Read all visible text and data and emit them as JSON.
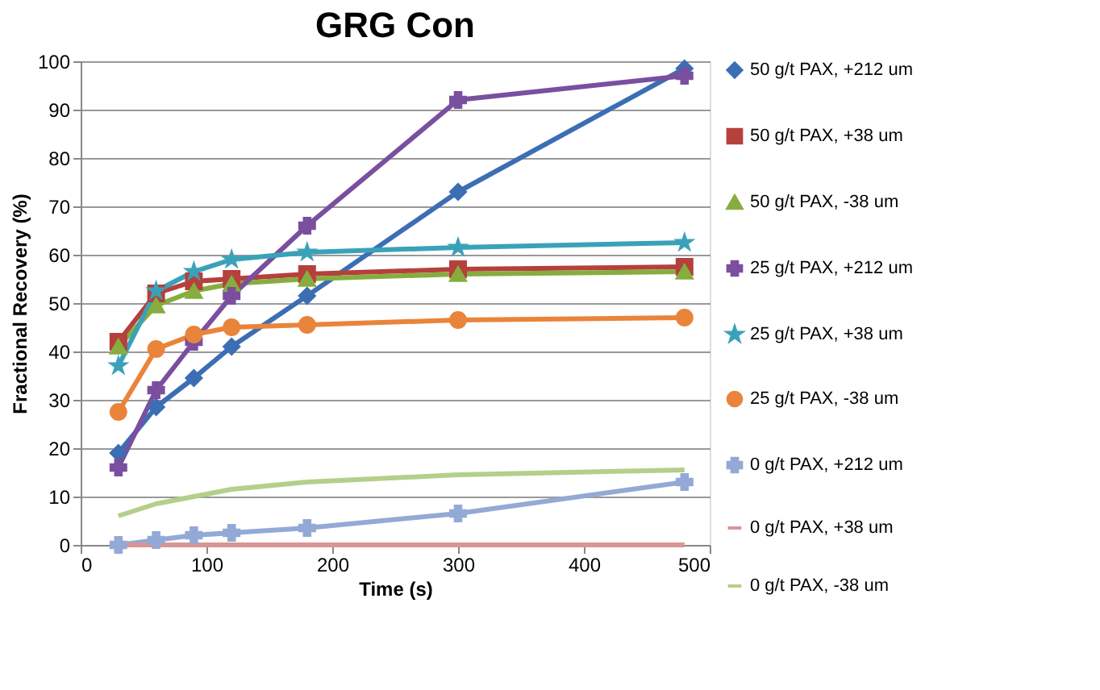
{
  "chart_data": {
    "type": "line",
    "title": "GRG Con",
    "xlabel": "Time (s)",
    "ylabel": "Fractional Recovery (%)",
    "x": [
      30,
      60,
      90,
      120,
      180,
      300,
      480
    ],
    "xlim": [
      0,
      500
    ],
    "xticks": [
      0,
      100,
      200,
      300,
      400,
      500
    ],
    "ylim": [
      0,
      100
    ],
    "yticks": [
      0,
      10,
      20,
      30,
      40,
      50,
      60,
      70,
      80,
      90,
      100
    ],
    "grid": "y",
    "legend": "right",
    "line_style": "solid",
    "series": [
      {
        "name": "50 g/t PAX, +212 um",
        "color": "#3c6eb4",
        "marker": "diamond",
        "values": [
          19,
          28.5,
          34.5,
          41,
          51.5,
          73,
          98.5
        ]
      },
      {
        "name": "50 g/t PAX, +38 um",
        "color": "#b5403c",
        "marker": "square",
        "values": [
          42,
          52,
          54.5,
          55,
          56,
          57,
          57.5
        ]
      },
      {
        "name": "50 g/t PAX, -38 um",
        "color": "#86ad3e",
        "marker": "triangle",
        "values": [
          41,
          49.5,
          52.5,
          54,
          55,
          56,
          56.5
        ]
      },
      {
        "name": "25 g/t PAX, +212 um",
        "color": "#7a4f9f",
        "marker": "cross",
        "values": [
          16,
          32,
          42,
          51.5,
          66,
          92,
          97
        ]
      },
      {
        "name": "25 g/t PAX, +38 um",
        "color": "#3aa2b8",
        "marker": "star",
        "values": [
          37,
          52.5,
          56.5,
          59,
          60.5,
          61.5,
          62.5
        ]
      },
      {
        "name": "25 g/t PAX, -38 um",
        "color": "#e9843a",
        "marker": "circle",
        "values": [
          27.5,
          40.5,
          43.5,
          45,
          45.5,
          46.5,
          47
        ]
      },
      {
        "name": "0 g/t PAX, +212 um",
        "color": "#93a9d6",
        "marker": "cross",
        "values": [
          0,
          1,
          2,
          2.5,
          3.5,
          6.5,
          13
        ]
      },
      {
        "name": "0 g/t PAX, +38 um",
        "color": "#d99594",
        "marker": "none",
        "values": [
          0,
          0,
          0,
          0,
          0,
          0,
          0
        ]
      },
      {
        "name": "0 g/t PAX, -38 um",
        "color": "#b4cf8a",
        "marker": "none",
        "values": [
          6,
          8.5,
          10,
          11.5,
          13,
          14.5,
          15.5
        ]
      }
    ]
  }
}
